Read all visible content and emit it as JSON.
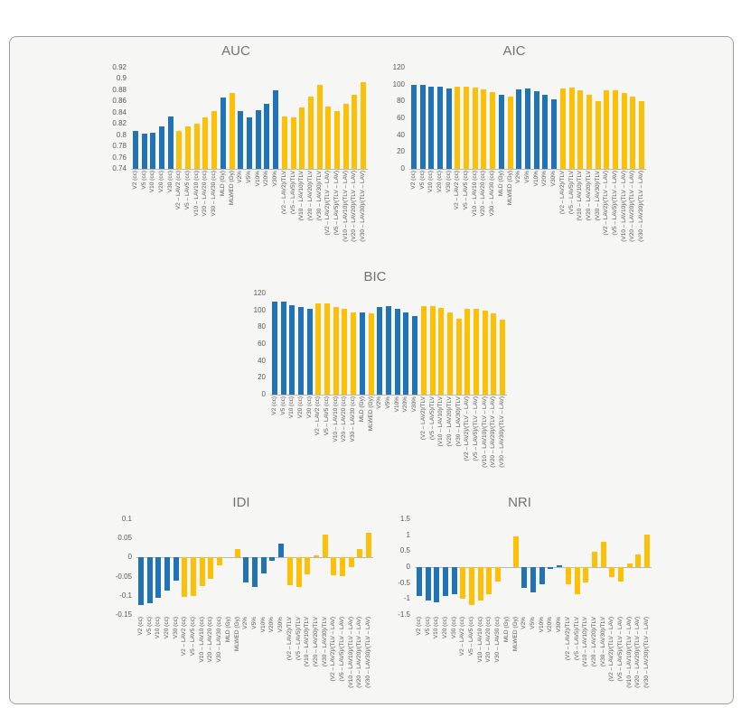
{
  "colors": {
    "blue": "#2173b6",
    "yellow": "#fdc008",
    "title_text": "#737373",
    "tick_text": "#595959",
    "axis_line": "#b9b9b9",
    "panel_background": "#f6f6f5",
    "panel_border": "#9e9e9e"
  },
  "categories": [
    "V2 (cc)",
    "V5 (cc)",
    "V10 (cc)",
    "V20 (cc)",
    "V30 (cc)",
    "V2 – LAV2 (cc)",
    "V5 – LAV5 (cc)",
    "V10 – LAV10 (cc)",
    "V20 – LAV20 (cc)",
    "V30 – LAV30 (cc)",
    "MLD (Gy)",
    "MLWED (Gy)",
    "V2%",
    "V5%",
    "V10%",
    "V20%",
    "V30%",
    "(V2 – LAV2)/TLV",
    "(V5 – LAV5)/TLV",
    "(V10 – LAV10)/TLV",
    "(V20 – LAV20)/TLV",
    "(V30 – LAV30)/TLV",
    "(V2 – LAV2)/(TLV – LAV)",
    "(V5 – LAV5)/(TLV – LAV)",
    "(V10 – LAV10)/(TLV – LAV)",
    "(V20 – LAV20)/(TLV – LAV)",
    "(V30 – LAV30)/(TLV – LAV)"
  ],
  "bar_color_pattern": [
    "blue",
    "blue",
    "blue",
    "blue",
    "blue",
    "yellow",
    "yellow",
    "yellow",
    "yellow",
    "yellow",
    "blue",
    "yellow",
    "blue",
    "blue",
    "blue",
    "blue",
    "blue",
    "yellow",
    "yellow",
    "yellow",
    "yellow",
    "yellow",
    "yellow",
    "yellow",
    "yellow",
    "yellow",
    "yellow"
  ],
  "chart_data": [
    {
      "id": "auc",
      "type": "bar",
      "title": "AUC",
      "ylim": [
        0.74,
        0.92
      ],
      "yticks": [
        "0.92",
        "0.9",
        "0.88",
        "0.86",
        "0.84",
        "0.82",
        "0.8",
        "0.78",
        "0.76",
        "0.74"
      ],
      "grid": false,
      "legend": "none",
      "values": [
        0.807,
        0.802,
        0.804,
        0.816,
        0.833,
        0.807,
        0.815,
        0.82,
        0.832,
        0.843,
        0.867,
        0.875,
        0.843,
        0.831,
        0.845,
        0.855,
        0.88,
        0.833,
        0.831,
        0.85,
        0.869,
        0.89,
        0.851,
        0.843,
        0.856,
        0.872,
        0.894
      ]
    },
    {
      "id": "aic",
      "type": "bar",
      "title": "AIC",
      "ylim": [
        0,
        120
      ],
      "yticks": [
        "120",
        "100",
        "80",
        "60",
        "40",
        "20",
        "0"
      ],
      "grid": false,
      "legend": "none",
      "values": [
        100,
        100,
        98,
        97,
        95,
        98,
        98,
        96,
        94,
        91,
        88,
        86,
        94,
        95,
        92,
        88,
        83,
        95,
        96,
        93,
        88,
        80,
        93,
        93,
        90,
        86,
        80
      ]
    },
    {
      "id": "bic",
      "type": "bar",
      "title": "BIC",
      "ylim": [
        0,
        120
      ],
      "yticks": [
        "120",
        "100",
        "80",
        "60",
        "40",
        "20",
        "0"
      ],
      "grid": false,
      "legend": "none",
      "values": [
        110,
        110,
        106,
        104,
        102,
        108,
        108,
        104,
        102,
        98,
        98,
        96,
        104,
        105,
        102,
        98,
        93,
        105,
        105,
        103,
        97,
        90,
        102,
        102,
        100,
        96,
        89
      ]
    },
    {
      "id": "idi",
      "type": "bar",
      "title": "IDI",
      "ylim": [
        -0.15,
        0.1
      ],
      "yticks": [
        "0.1",
        "0.05",
        "0",
        "-0.05",
        "-0.1",
        "-0.15"
      ],
      "grid": false,
      "legend": "none",
      "values": [
        -0.123,
        -0.12,
        -0.105,
        -0.086,
        -0.06,
        -0.103,
        -0.1,
        -0.075,
        -0.055,
        -0.02,
        0,
        0.021,
        -0.065,
        -0.078,
        -0.042,
        -0.008,
        0.036,
        -0.073,
        -0.078,
        -0.043,
        0.005,
        0.061,
        -0.047,
        -0.048,
        -0.025,
        0.021,
        0.064
      ]
    },
    {
      "id": "nri",
      "type": "bar",
      "title": "NRI",
      "ylim": [
        -1.5,
        1.5
      ],
      "yticks": [
        "1.5",
        "1",
        "0.5",
        "0",
        "-0.5",
        "-1",
        "-1.5"
      ],
      "grid": false,
      "legend": "none",
      "values": [
        -0.9,
        -1.05,
        -1.1,
        -0.9,
        -0.85,
        -1.0,
        -1.18,
        -1.05,
        -0.85,
        -0.45,
        0,
        0.95,
        -0.65,
        -0.78,
        -0.55,
        -0.05,
        0.07,
        -0.55,
        -0.85,
        -0.48,
        0.47,
        0.8,
        -0.3,
        -0.45,
        0.1,
        0.4,
        1.03
      ]
    }
  ]
}
